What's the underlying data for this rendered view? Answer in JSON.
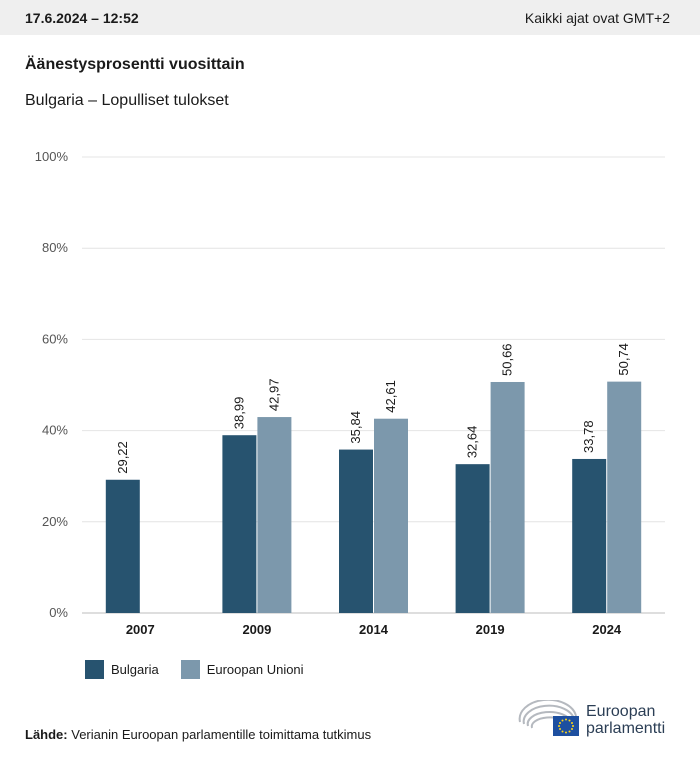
{
  "header": {
    "date": "17.6.2024 – 12:52",
    "timezone_note": "Kaikki ajat ovat GMT+2"
  },
  "title": "Äänestysprosentti vuosittain",
  "subtitle": "Bulgaria – Lopulliset tulokset",
  "colors": {
    "bulgaria": "#27536f",
    "eu": "#7c98ac",
    "grid": "#e4e4e4",
    "axis": "#bdbdbd"
  },
  "chart_data": {
    "type": "bar",
    "categories": [
      "2007",
      "2009",
      "2014",
      "2019",
      "2024"
    ],
    "series": [
      {
        "name": "Bulgaria",
        "values": [
          29.22,
          38.99,
          35.84,
          32.64,
          33.78
        ],
        "labels": [
          "29,22",
          "38,99",
          "35,84",
          "32,64",
          "33,78"
        ]
      },
      {
        "name": "Euroopan Unioni",
        "values": [
          null,
          42.97,
          42.61,
          50.66,
          50.74
        ],
        "labels": [
          null,
          "42,97",
          "42,61",
          "50,66",
          "50,74"
        ]
      }
    ],
    "ylim": [
      0,
      100
    ],
    "yticks": [
      0,
      20,
      40,
      60,
      80,
      100
    ],
    "ytick_labels": [
      "0%",
      "20%",
      "40%",
      "60%",
      "80%",
      "100%"
    ],
    "grid": true,
    "legend": "bottom-left"
  },
  "source": {
    "label": "Lähde:",
    "text": "Verianin Euroopan parlamentille toimittama tutkimus"
  },
  "logo": {
    "line1": "Euroopan",
    "line2": "parlamentti",
    "icon": "european-parliament-logo-icon"
  }
}
